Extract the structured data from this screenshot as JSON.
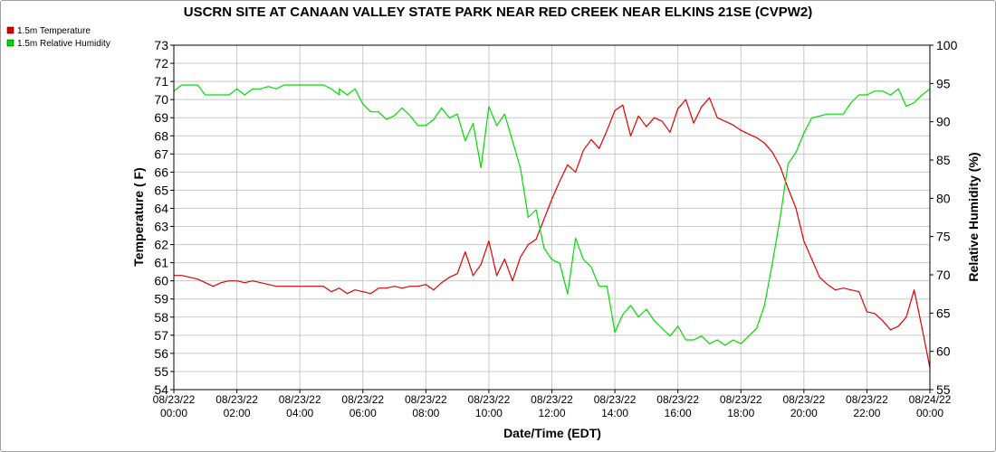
{
  "chart_data": {
    "type": "line",
    "title": "USCRN SITE AT CANAAN VALLEY STATE PARK NEAR RED CREEK NEAR ELKINS 21SE (CVPW2)",
    "xlabel": "Date/Time (EDT)",
    "ylabel_left": "Temperature ( F)",
    "ylabel_right": "Relative Humidity (%)",
    "x_tick_dates": [
      "08/23/22",
      "08/23/22",
      "08/23/22",
      "08/23/22",
      "08/23/22",
      "08/23/22",
      "08/23/22",
      "08/23/22",
      "08/23/22",
      "08/23/22",
      "08/23/22",
      "08/23/22",
      "08/24/22"
    ],
    "x_tick_times": [
      "00:00",
      "02:00",
      "04:00",
      "06:00",
      "08:00",
      "10:00",
      "12:00",
      "14:00",
      "16:00",
      "18:00",
      "20:00",
      "22:00",
      "00:00"
    ],
    "x_tick_hours": [
      0,
      2,
      4,
      6,
      8,
      10,
      12,
      14,
      16,
      18,
      20,
      22,
      24
    ],
    "y_left_range": [
      54,
      73
    ],
    "y_left_ticks": [
      54,
      55,
      56,
      57,
      58,
      59,
      60,
      61,
      62,
      63,
      64,
      65,
      66,
      67,
      68,
      69,
      70,
      71,
      72,
      73
    ],
    "y_right_range": [
      55,
      100
    ],
    "y_right_ticks": [
      55,
      60,
      65,
      70,
      75,
      80,
      85,
      90,
      95,
      100
    ],
    "grid": true,
    "legend_placement": "top-left",
    "series": [
      {
        "name": "1.5m Temperature",
        "color": "#e00000",
        "axis": "left",
        "points": [
          [
            0,
            60.3
          ],
          [
            0.25,
            60.3
          ],
          [
            0.5,
            60.2
          ],
          [
            0.75,
            60.1
          ],
          [
            1,
            59.9
          ],
          [
            1.25,
            59.7
          ],
          [
            1.5,
            59.9
          ],
          [
            1.75,
            60.0
          ],
          [
            2,
            60.0
          ],
          [
            2.25,
            59.9
          ],
          [
            2.5,
            60.0
          ],
          [
            2.75,
            59.9
          ],
          [
            3,
            59.8
          ],
          [
            3.25,
            59.7
          ],
          [
            3.5,
            59.7
          ],
          [
            3.75,
            59.7
          ],
          [
            4,
            59.7
          ],
          [
            4.25,
            59.7
          ],
          [
            4.5,
            59.7
          ],
          [
            4.75,
            59.7
          ],
          [
            5,
            59.4
          ],
          [
            5.25,
            59.6
          ],
          [
            5.5,
            59.3
          ],
          [
            5.75,
            59.5
          ],
          [
            6,
            59.4
          ],
          [
            6.25,
            59.3
          ],
          [
            6.5,
            59.6
          ],
          [
            6.75,
            59.6
          ],
          [
            7,
            59.7
          ],
          [
            7.25,
            59.6
          ],
          [
            7.5,
            59.7
          ],
          [
            7.75,
            59.7
          ],
          [
            8,
            59.8
          ],
          [
            8.25,
            59.5
          ],
          [
            8.5,
            59.9
          ],
          [
            8.75,
            60.2
          ],
          [
            9,
            60.4
          ],
          [
            9.25,
            61.6
          ],
          [
            9.5,
            60.3
          ],
          [
            9.75,
            60.9
          ],
          [
            10,
            62.2
          ],
          [
            10.25,
            60.3
          ],
          [
            10.5,
            61.2
          ],
          [
            10.75,
            60.0
          ],
          [
            11,
            61.3
          ],
          [
            11.25,
            62.0
          ],
          [
            11.5,
            62.3
          ],
          [
            11.75,
            63.4
          ],
          [
            12,
            64.5
          ],
          [
            12.25,
            65.5
          ],
          [
            12.5,
            66.4
          ],
          [
            12.75,
            66.0
          ],
          [
            13,
            67.2
          ],
          [
            13.25,
            67.8
          ],
          [
            13.5,
            67.3
          ],
          [
            13.75,
            68.3
          ],
          [
            14,
            69.4
          ],
          [
            14.25,
            69.7
          ],
          [
            14.5,
            68.0
          ],
          [
            14.75,
            69.1
          ],
          [
            15,
            68.5
          ],
          [
            15.25,
            69.0
          ],
          [
            15.5,
            68.8
          ],
          [
            15.75,
            68.2
          ],
          [
            16,
            69.5
          ],
          [
            16.25,
            70.0
          ],
          [
            16.5,
            68.7
          ],
          [
            16.75,
            69.6
          ],
          [
            17,
            70.1
          ],
          [
            17.25,
            69.0
          ],
          [
            17.5,
            68.8
          ],
          [
            17.75,
            68.6
          ],
          [
            18,
            68.3
          ],
          [
            18.25,
            68.1
          ],
          [
            18.5,
            67.9
          ],
          [
            18.75,
            67.6
          ],
          [
            19,
            67.1
          ],
          [
            19.25,
            66.3
          ],
          [
            19.5,
            65.1
          ],
          [
            19.75,
            64.0
          ],
          [
            20,
            62.2
          ],
          [
            20.25,
            61.2
          ],
          [
            20.5,
            60.2
          ],
          [
            20.75,
            59.8
          ],
          [
            21,
            59.5
          ],
          [
            21.25,
            59.6
          ],
          [
            21.5,
            59.5
          ],
          [
            21.75,
            59.4
          ],
          [
            22,
            58.3
          ],
          [
            22.25,
            58.2
          ],
          [
            22.5,
            57.8
          ],
          [
            22.75,
            57.3
          ],
          [
            23,
            57.5
          ],
          [
            23.25,
            58.0
          ],
          [
            23.5,
            59.5
          ],
          [
            23.75,
            57.4
          ],
          [
            24,
            55.2
          ]
        ]
      },
      {
        "name": "1.5m Relative Humidity",
        "color": "#00dd00",
        "axis": "right",
        "points": [
          [
            0,
            94
          ],
          [
            0.25,
            94.8
          ],
          [
            0.5,
            94.8
          ],
          [
            0.75,
            94.8
          ],
          [
            1,
            93.5
          ],
          [
            1.25,
            93.5
          ],
          [
            1.5,
            93.5
          ],
          [
            1.75,
            93.5
          ],
          [
            2,
            94.3
          ],
          [
            2.25,
            93.5
          ],
          [
            2.5,
            94.3
          ],
          [
            2.75,
            94.3
          ],
          [
            3,
            94.6
          ],
          [
            3.25,
            94.3
          ],
          [
            3.5,
            94.8
          ],
          [
            3.75,
            94.8
          ],
          [
            4,
            94.8
          ],
          [
            4.25,
            94.8
          ],
          [
            4.5,
            94.8
          ],
          [
            4.75,
            94.8
          ],
          [
            5,
            94.3
          ],
          [
            5.25,
            93.5
          ],
          [
            5.25,
            94.3
          ],
          [
            5.5,
            93.5
          ],
          [
            5.75,
            94.3
          ],
          [
            6,
            92.3
          ],
          [
            6.25,
            91.3
          ],
          [
            6.5,
            91.3
          ],
          [
            6.75,
            90.3
          ],
          [
            7,
            90.8
          ],
          [
            7.25,
            91.8
          ],
          [
            7.5,
            90.8
          ],
          [
            7.75,
            89.5
          ],
          [
            8,
            89.5
          ],
          [
            8.25,
            90.3
          ],
          [
            8.5,
            91.8
          ],
          [
            8.75,
            90.5
          ],
          [
            9,
            91.0
          ],
          [
            9.25,
            87.5
          ],
          [
            9.5,
            89.8
          ],
          [
            9.75,
            84.0
          ],
          [
            10,
            92.0
          ],
          [
            10.25,
            89.5
          ],
          [
            10.5,
            91.0
          ],
          [
            10.75,
            87.5
          ],
          [
            11,
            84.0
          ],
          [
            11.25,
            77.5
          ],
          [
            11.5,
            78.5
          ],
          [
            11.75,
            73.5
          ],
          [
            12,
            72.0
          ],
          [
            12.25,
            71.5
          ],
          [
            12.5,
            67.5
          ],
          [
            12.75,
            74.8
          ],
          [
            13,
            72.0
          ],
          [
            13.25,
            71.0
          ],
          [
            13.5,
            68.5
          ],
          [
            13.75,
            68.5
          ],
          [
            14,
            62.5
          ],
          [
            14.25,
            64.8
          ],
          [
            14.5,
            66.0
          ],
          [
            14.75,
            64.5
          ],
          [
            15,
            65.5
          ],
          [
            15.25,
            64.0
          ],
          [
            15.5,
            63.0
          ],
          [
            15.75,
            62.0
          ],
          [
            16,
            63.3
          ],
          [
            16.25,
            61.5
          ],
          [
            16.5,
            61.5
          ],
          [
            16.75,
            62.0
          ],
          [
            17,
            61.0
          ],
          [
            17.25,
            61.5
          ],
          [
            17.5,
            60.8
          ],
          [
            17.75,
            61.5
          ],
          [
            18,
            61.0
          ],
          [
            18.25,
            62.0
          ],
          [
            18.5,
            63.0
          ],
          [
            18.75,
            66.0
          ],
          [
            19,
            71.5
          ],
          [
            19.25,
            77.5
          ],
          [
            19.5,
            84.5
          ],
          [
            19.75,
            86.0
          ],
          [
            20,
            88.5
          ],
          [
            20.25,
            90.5
          ],
          [
            20.75,
            91.0
          ],
          [
            21,
            91.0
          ],
          [
            21.25,
            91.0
          ],
          [
            21.5,
            92.5
          ],
          [
            21.75,
            93.5
          ],
          [
            22,
            93.5
          ],
          [
            22.25,
            94.0
          ],
          [
            22.5,
            94.0
          ],
          [
            22.75,
            93.5
          ],
          [
            23,
            94.3
          ],
          [
            23.25,
            92.0
          ],
          [
            23.5,
            92.5
          ],
          [
            23.75,
            93.5
          ],
          [
            24,
            94.3
          ]
        ]
      }
    ]
  }
}
